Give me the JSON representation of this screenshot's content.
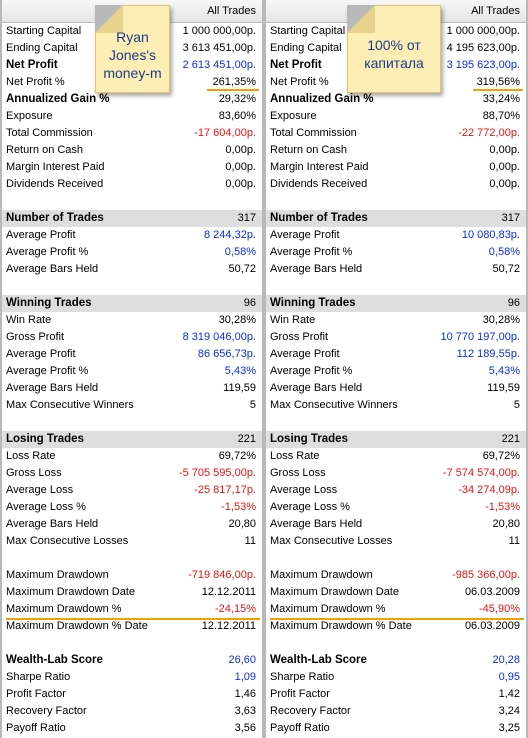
{
  "column_header": "All Trades",
  "notes": {
    "left": "Ryan Jones's money-m",
    "right": "100% от капитала"
  },
  "panels": {
    "left": {
      "rows": [
        {
          "label": "Starting Capital",
          "value": "1 000 000,00р."
        },
        {
          "label": "Ending Capital",
          "value": "3 613 451,00р."
        },
        {
          "label": "Net Profit",
          "value": "2 613 451,00р.",
          "bold": true,
          "color": "blue"
        },
        {
          "label": "Net Profit %",
          "value": "261,35%"
        },
        {
          "label": "Annualized Gain %",
          "value": "29,32%",
          "bold": true
        },
        {
          "label": "Exposure",
          "value": "83,60%"
        },
        {
          "label": "Total Commission",
          "value": "-17 604,00р.",
          "color": "red"
        },
        {
          "label": "Return on Cash",
          "value": "0,00р."
        },
        {
          "label": "Margin Interest Paid",
          "value": "0,00р."
        },
        {
          "label": "Dividends Received",
          "value": "0,00р."
        },
        {
          "spacer": true
        },
        {
          "label": "Number of Trades",
          "value": "317",
          "section": true
        },
        {
          "label": "Average Profit",
          "value": "8 244,32р.",
          "color": "blue"
        },
        {
          "label": "Average Profit %",
          "value": "0,58%",
          "color": "blue"
        },
        {
          "label": "Average Bars Held",
          "value": "50,72"
        },
        {
          "spacer": true
        },
        {
          "label": "Winning Trades",
          "value": "96",
          "section": true
        },
        {
          "label": "Win Rate",
          "value": "30,28%"
        },
        {
          "label": "Gross Profit",
          "value": "8 319 046,00р.",
          "color": "blue"
        },
        {
          "label": "Average Profit",
          "value": "86 656,73р.",
          "color": "blue"
        },
        {
          "label": "Average Profit %",
          "value": "5,43%",
          "color": "blue"
        },
        {
          "label": "Average Bars Held",
          "value": "119,59"
        },
        {
          "label": "Max Consecutive Winners",
          "value": "5"
        },
        {
          "spacer": true
        },
        {
          "label": "Losing Trades",
          "value": "221",
          "section": true
        },
        {
          "label": "Loss Rate",
          "value": "69,72%"
        },
        {
          "label": "Gross Loss",
          "value": "-5 705 595,00р.",
          "color": "red"
        },
        {
          "label": "Average Loss",
          "value": "-25 817,17р.",
          "color": "red"
        },
        {
          "label": "Average Loss %",
          "value": "-1,53%",
          "color": "red"
        },
        {
          "label": "Average Bars Held",
          "value": "20,80"
        },
        {
          "label": "Max Consecutive Losses",
          "value": "11"
        },
        {
          "spacer": true
        },
        {
          "label": "Maximum Drawdown",
          "value": "-719 846,00р.",
          "color": "red"
        },
        {
          "label": "Maximum Drawdown Date",
          "value": "12.12.2011"
        },
        {
          "label": "Maximum Drawdown %",
          "value": "-24,15%",
          "color": "red"
        },
        {
          "label": "Maximum Drawdown % Date",
          "value": "12.12.2011"
        },
        {
          "spacer": true
        },
        {
          "label": "Wealth-Lab Score",
          "value": "26,60",
          "bold": true,
          "color": "blue"
        },
        {
          "label": "Sharpe Ratio",
          "value": "1,09",
          "color": "blue"
        },
        {
          "label": "Profit Factor",
          "value": "1,46"
        },
        {
          "label": "Recovery Factor",
          "value": "3,63"
        },
        {
          "label": "Payoff Ratio",
          "value": "3,56"
        }
      ]
    },
    "right": {
      "rows": [
        {
          "label": "Starting Capital",
          "value": "1 000 000,00р."
        },
        {
          "label": "Ending Capital",
          "value": "4 195 623,00р."
        },
        {
          "label": "Net Profit",
          "value": "3 195 623,00р.",
          "bold": true,
          "color": "blue"
        },
        {
          "label": "Net Profit %",
          "value": "319,56%"
        },
        {
          "label": "Annualized Gain %",
          "value": "33,24%",
          "bold": true
        },
        {
          "label": "Exposure",
          "value": "88,70%"
        },
        {
          "label": "Total Commission",
          "value": "-22 772,00р.",
          "color": "red"
        },
        {
          "label": "Return on Cash",
          "value": "0,00р."
        },
        {
          "label": "Margin Interest Paid",
          "value": "0,00р."
        },
        {
          "label": "Dividends Received",
          "value": "0,00р."
        },
        {
          "spacer": true
        },
        {
          "label": "Number of Trades",
          "value": "317",
          "section": true
        },
        {
          "label": "Average Profit",
          "value": "10 080,83р.",
          "color": "blue"
        },
        {
          "label": "Average Profit %",
          "value": "0,58%",
          "color": "blue"
        },
        {
          "label": "Average Bars Held",
          "value": "50,72"
        },
        {
          "spacer": true
        },
        {
          "label": "Winning Trades",
          "value": "96",
          "section": true
        },
        {
          "label": "Win Rate",
          "value": "30,28%"
        },
        {
          "label": "Gross Profit",
          "value": "10 770 197,00р.",
          "color": "blue"
        },
        {
          "label": "Average Profit",
          "value": "112 189,55р.",
          "color": "blue"
        },
        {
          "label": "Average Profit %",
          "value": "5,43%",
          "color": "blue"
        },
        {
          "label": "Average Bars Held",
          "value": "119,59"
        },
        {
          "label": "Max Consecutive Winners",
          "value": "5"
        },
        {
          "spacer": true
        },
        {
          "label": "Losing Trades",
          "value": "221",
          "section": true
        },
        {
          "label": "Loss Rate",
          "value": "69,72%"
        },
        {
          "label": "Gross Loss",
          "value": "-7 574 574,00р.",
          "color": "red"
        },
        {
          "label": "Average Loss",
          "value": "-34 274,09р.",
          "color": "red"
        },
        {
          "label": "Average Loss %",
          "value": "-1,53%",
          "color": "red"
        },
        {
          "label": "Average Bars Held",
          "value": "20,80"
        },
        {
          "label": "Max Consecutive Losses",
          "value": "11"
        },
        {
          "spacer": true
        },
        {
          "label": "Maximum Drawdown",
          "value": "-985 366,00р.",
          "color": "red"
        },
        {
          "label": "Maximum Drawdown Date",
          "value": "06.03.2009"
        },
        {
          "label": "Maximum Drawdown %",
          "value": "-45,90%",
          "color": "red"
        },
        {
          "label": "Maximum Drawdown % Date",
          "value": "06.03.2009"
        },
        {
          "spacer": true
        },
        {
          "label": "Wealth-Lab Score",
          "value": "20,28",
          "bold": true,
          "color": "blue"
        },
        {
          "label": "Sharpe Ratio",
          "value": "0,95",
          "color": "blue"
        },
        {
          "label": "Profit Factor",
          "value": "1,42"
        },
        {
          "label": "Recovery Factor",
          "value": "3,24"
        },
        {
          "label": "Payoff Ratio",
          "value": "3,25"
        }
      ]
    }
  },
  "colors": {
    "blue": "#0a2ee6",
    "red": "#e61414",
    "highlight": "#f5a000",
    "section_bg": "#dedede",
    "note_bg": "#fdeeb5"
  }
}
